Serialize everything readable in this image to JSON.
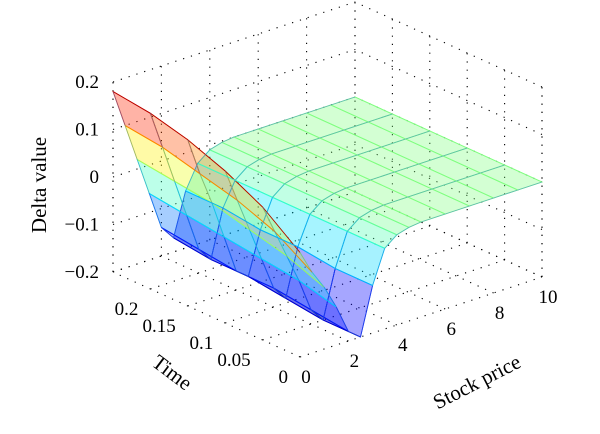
{
  "chart_data": {
    "type": "surface",
    "title": "",
    "xlabel": "Stock price",
    "ylabel": "Time",
    "zlabel": "Delta value",
    "xlim": [
      0,
      10
    ],
    "ylim": [
      0,
      0.25
    ],
    "zlim": [
      -0.2,
      0.2
    ],
    "xticks": [
      "0",
      "2",
      "4",
      "6",
      "8",
      "10"
    ],
    "yticks": [
      "0",
      "0.05",
      "0.1",
      "0.15",
      "0.2"
    ],
    "zticks": [
      "0.2",
      "0.1",
      "0",
      "−0.1",
      "−0.2"
    ],
    "colormap": "jet",
    "grid": true,
    "surface": {
      "stock_price": [
        0,
        0.5,
        1,
        1.5,
        2,
        2.5,
        3,
        3.5,
        4,
        4.5,
        5,
        6,
        7,
        8,
        9,
        10
      ],
      "time": [
        0.25,
        0.2,
        0.15,
        0.1,
        0.05,
        0
      ],
      "delta": [
        [
          0.18,
          0.1,
          0.02,
          -0.06,
          -0.14,
          -0.17,
          -0.08,
          -0.03,
          -0.01,
          -0.003,
          0,
          0,
          0,
          0,
          0,
          0
        ],
        [
          0.17,
          0.09,
          0.01,
          -0.07,
          -0.15,
          -0.18,
          -0.08,
          -0.03,
          -0.01,
          -0.003,
          0,
          0,
          0,
          0,
          0,
          0
        ],
        [
          0.15,
          0.07,
          0.0,
          -0.08,
          -0.16,
          -0.18,
          -0.09,
          -0.03,
          -0.01,
          -0.003,
          0,
          0,
          0,
          0,
          0,
          0
        ],
        [
          0.12,
          0.05,
          -0.02,
          -0.09,
          -0.16,
          -0.19,
          -0.09,
          -0.03,
          -0.01,
          -0.003,
          0,
          0,
          0,
          0,
          0,
          0
        ],
        [
          0.08,
          0.02,
          -0.04,
          -0.1,
          -0.17,
          -0.2,
          -0.1,
          -0.03,
          -0.01,
          -0.003,
          0,
          0,
          0,
          0,
          0,
          0
        ],
        [
          0.02,
          -0.03,
          -0.07,
          -0.12,
          -0.18,
          -0.2,
          -0.1,
          -0.03,
          -0.01,
          -0.003,
          0,
          0,
          0,
          0,
          0,
          0
        ]
      ]
    }
  }
}
